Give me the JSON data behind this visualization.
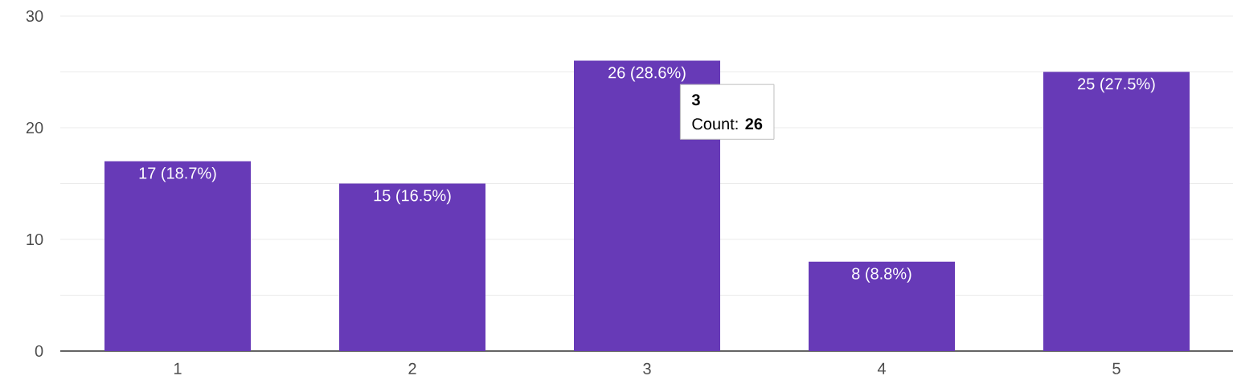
{
  "chart_data": {
    "type": "bar",
    "categories": [
      "1",
      "2",
      "3",
      "4",
      "5"
    ],
    "values": [
      17,
      15,
      26,
      8,
      25
    ],
    "value_labels": [
      "17 (18.7%)",
      "15 (16.5%)",
      "26 (28.6%)",
      "8 (8.8%)",
      "25 (27.5%)"
    ],
    "color": "#673ab7",
    "ylim": [
      0,
      30
    ],
    "yticks": [
      0,
      {
        "value": 5,
        "label": null
      },
      10,
      {
        "value": 15,
        "label": null
      },
      20,
      {
        "value": 25,
        "label": null
      },
      30
    ],
    "grid": "y",
    "annotations": [
      "3",
      "Count: **26**"
    ]
  }
}
